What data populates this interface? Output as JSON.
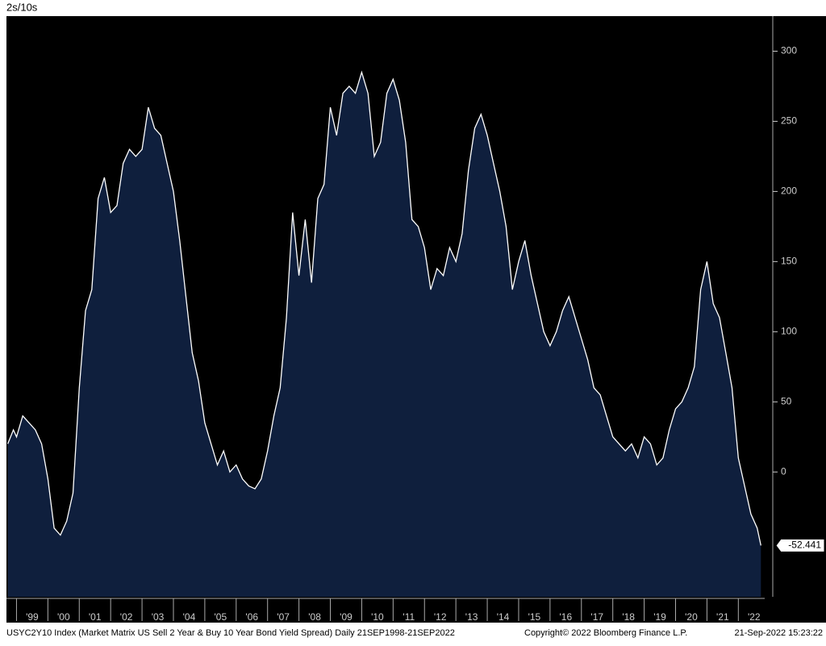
{
  "chart_data": {
    "type": "area",
    "title": "2s/10s",
    "x": [
      1998.72,
      1998.9,
      1999.0,
      1999.2,
      1999.4,
      1999.6,
      1999.8,
      2000.0,
      2000.2,
      2000.4,
      2000.6,
      2000.8,
      2001.0,
      2001.2,
      2001.4,
      2001.6,
      2001.8,
      2002.0,
      2002.2,
      2002.4,
      2002.6,
      2002.8,
      2003.0,
      2003.2,
      2003.4,
      2003.6,
      2003.8,
      2004.0,
      2004.2,
      2004.4,
      2004.6,
      2004.8,
      2005.0,
      2005.2,
      2005.4,
      2005.6,
      2005.8,
      2006.0,
      2006.2,
      2006.4,
      2006.6,
      2006.8,
      2007.0,
      2007.2,
      2007.4,
      2007.6,
      2007.8,
      2008.0,
      2008.2,
      2008.4,
      2008.6,
      2008.8,
      2009.0,
      2009.2,
      2009.4,
      2009.6,
      2009.8,
      2010.0,
      2010.2,
      2010.4,
      2010.6,
      2010.8,
      2011.0,
      2011.2,
      2011.4,
      2011.6,
      2011.8,
      2012.0,
      2012.2,
      2012.4,
      2012.6,
      2012.8,
      2013.0,
      2013.2,
      2013.4,
      2013.6,
      2013.8,
      2014.0,
      2014.2,
      2014.4,
      2014.6,
      2014.8,
      2015.0,
      2015.2,
      2015.4,
      2015.6,
      2015.8,
      2016.0,
      2016.2,
      2016.4,
      2016.6,
      2016.8,
      2017.0,
      2017.2,
      2017.4,
      2017.6,
      2017.8,
      2018.0,
      2018.2,
      2018.4,
      2018.6,
      2018.8,
      2019.0,
      2019.2,
      2019.4,
      2019.6,
      2019.8,
      2020.0,
      2020.2,
      2020.4,
      2020.6,
      2020.8,
      2021.0,
      2021.2,
      2021.4,
      2021.6,
      2021.8,
      2022.0,
      2022.2,
      2022.4,
      2022.6,
      2022.72
    ],
    "series": [
      {
        "name": "USYC2Y10 Index",
        "color": "#0f1f3d",
        "line_color": "#ffffff",
        "values": [
          20,
          30,
          25,
          40,
          35,
          30,
          20,
          -5,
          -40,
          -45,
          -35,
          -15,
          60,
          115,
          130,
          195,
          210,
          185,
          190,
          220,
          230,
          225,
          230,
          260,
          245,
          240,
          220,
          200,
          165,
          125,
          85,
          65,
          35,
          20,
          5,
          15,
          0,
          5,
          -5,
          -10,
          -12,
          -5,
          15,
          40,
          60,
          110,
          185,
          140,
          180,
          135,
          195,
          205,
          260,
          240,
          270,
          275,
          270,
          285,
          270,
          225,
          235,
          270,
          280,
          265,
          235,
          180,
          175,
          160,
          130,
          145,
          140,
          160,
          150,
          170,
          215,
          245,
          255,
          240,
          220,
          200,
          175,
          130,
          150,
          165,
          140,
          120,
          100,
          90,
          100,
          115,
          125,
          110,
          95,
          80,
          60,
          55,
          40,
          25,
          20,
          15,
          20,
          10,
          25,
          20,
          5,
          10,
          30,
          45,
          50,
          60,
          75,
          130,
          150,
          120,
          110,
          85,
          60,
          10,
          -10,
          -30,
          -40,
          -52.441
        ]
      }
    ],
    "xlim": [
      1998.68,
      2022.84
    ],
    "ylim": [
      -89,
      325
    ],
    "yticks": [
      0,
      50,
      100,
      150,
      200,
      250,
      300
    ],
    "xticks": [
      {
        "value": 1999,
        "label": "'99"
      },
      {
        "value": 2000,
        "label": "'00"
      },
      {
        "value": 2001,
        "label": "'01"
      },
      {
        "value": 2002,
        "label": "'02"
      },
      {
        "value": 2003,
        "label": "'03"
      },
      {
        "value": 2004,
        "label": "'04"
      },
      {
        "value": 2005,
        "label": "'05"
      },
      {
        "value": 2006,
        "label": "'06"
      },
      {
        "value": 2007,
        "label": "'07"
      },
      {
        "value": 2008,
        "label": "'08"
      },
      {
        "value": 2009,
        "label": "'09"
      },
      {
        "value": 2010,
        "label": "'10"
      },
      {
        "value": 2011,
        "label": "'11"
      },
      {
        "value": 2012,
        "label": "'12"
      },
      {
        "value": 2013,
        "label": "'13"
      },
      {
        "value": 2014,
        "label": "'14"
      },
      {
        "value": 2015,
        "label": "'15"
      },
      {
        "value": 2016,
        "label": "'16"
      },
      {
        "value": 2017,
        "label": "'17"
      },
      {
        "value": 2018,
        "label": "'18"
      },
      {
        "value": 2019,
        "label": "'19"
      },
      {
        "value": 2020,
        "label": "'20"
      },
      {
        "value": 2021,
        "label": "'21"
      },
      {
        "value": 2022,
        "label": "'22"
      }
    ],
    "footer": {
      "description": "USYC2Y10 Index (Market Matrix US Sell 2 Year & Buy 10 Year Bond Yield Spread)  Daily 21SEP1998-21SEP2022",
      "copyright": "Copyright© 2022 Bloomberg Finance L.P.",
      "timestamp": "21-Sep-2022 15:23:22"
    }
  }
}
